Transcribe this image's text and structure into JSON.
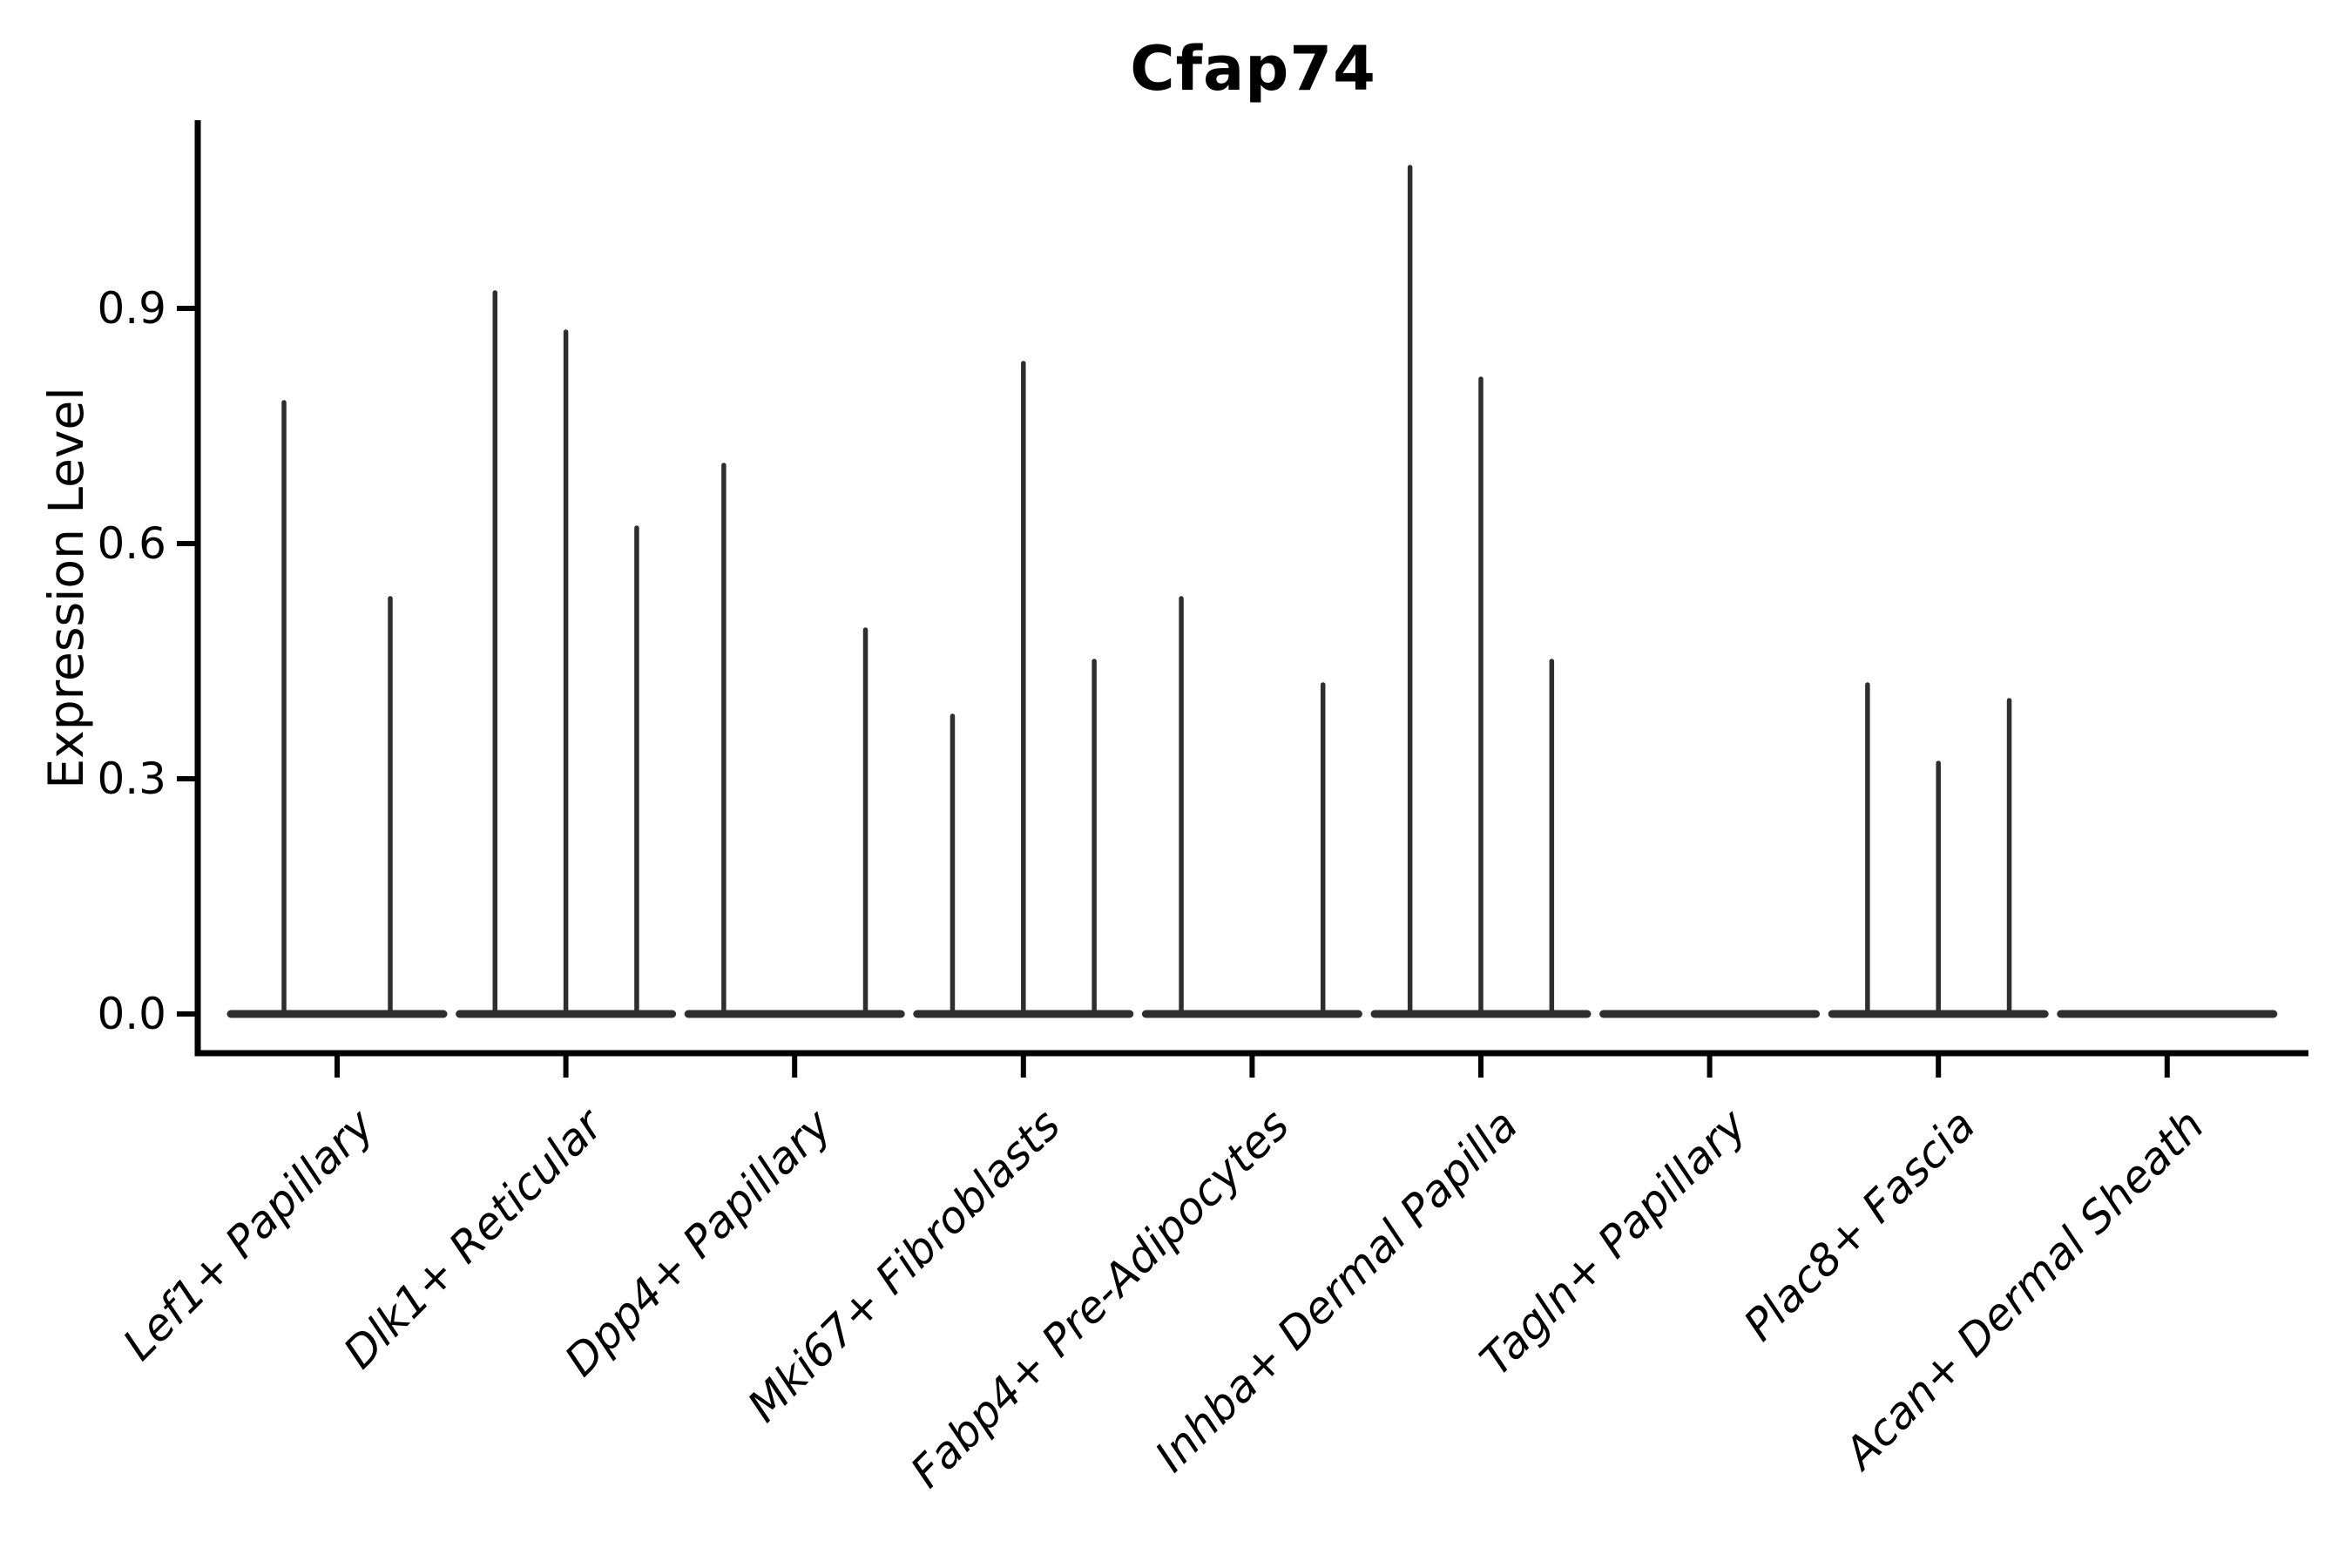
{
  "chart_data": {
    "type": "violin",
    "title": "Cfap74",
    "xlabel": "",
    "ylabel": "Expression Level",
    "y_tick_labels": [
      "0.0",
      "0.3",
      "0.6",
      "0.9"
    ],
    "y_tick_values": [
      0.0,
      0.3,
      0.6,
      0.9
    ],
    "ylim": [
      -0.05,
      1.14
    ],
    "grid": false,
    "legend": "none",
    "categories": [
      "Lef1+ Papillary",
      "Dlk1+ Reticular",
      "Dpp4+ Papillary",
      "Mki67+ Fibroblasts",
      "Fabp4+ Pre-Adipocytes",
      "Inhba+ Dermal Papilla",
      "Tagln+ Papillary",
      "Plac8+ Fascia",
      "Acan+ Dermal Sheath"
    ],
    "series": [
      {
        "category": "Lef1+ Papillary",
        "violin_max_expression": [
          0.78,
          0.53
        ]
      },
      {
        "category": "Dlk1+ Reticular",
        "violin_max_expression": [
          0.92,
          0.87,
          0.62
        ]
      },
      {
        "category": "Dpp4+ Papillary",
        "violin_max_expression": [
          0.7,
          0.0,
          0.49
        ]
      },
      {
        "category": "Mki67+ Fibroblasts",
        "violin_max_expression": [
          0.38,
          0.83,
          0.45
        ]
      },
      {
        "category": "Fabp4+ Pre-Adipocytes",
        "violin_max_expression": [
          0.53,
          0.0,
          0.42
        ]
      },
      {
        "category": "Inhba+ Dermal Papilla",
        "violin_max_expression": [
          1.08,
          0.81,
          0.45
        ]
      },
      {
        "category": "Tagln+ Papillary",
        "violin_max_expression": [
          0.0,
          0.0,
          0.0
        ]
      },
      {
        "category": "Plac8+ Fascia",
        "violin_max_expression": [
          0.42,
          0.32,
          0.4
        ]
      },
      {
        "category": "Acan+ Dermal Sheath",
        "violin_max_expression": [
          0.0,
          0.0,
          0.0
        ]
      }
    ],
    "style_notes": {
      "x_label_rotation_deg": 45,
      "x_labels_italic": true,
      "title_bold": true,
      "violins_collapsed_at_zero": true
    },
    "colors": {
      "violin_line": "#2e2e2e",
      "axis": "#000000",
      "background": "#ffffff",
      "text": "#000000"
    }
  }
}
